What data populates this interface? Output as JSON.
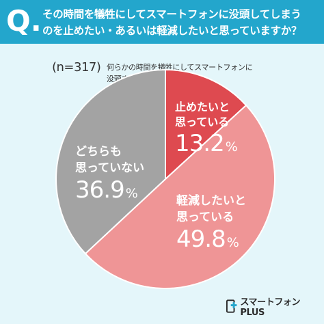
{
  "question": {
    "mark": "Q.",
    "line1": "その時間を犠牲にしてスマートフォンに没頭してしまう",
    "line2": "のを止めたい・あるいは軽減したいと思っていますか？"
  },
  "sample": "(n=317)",
  "subtitle": {
    "line1": "何らかの時間を犠牲にしてスマートフォンに",
    "line2": "没頭することがある方"
  },
  "colors": {
    "header": "#23a6cc",
    "background": "#e4f6fa",
    "stop": "#de4a50",
    "reduce": "#ef9596",
    "neither": "#a3a3a3"
  },
  "chart_data": {
    "type": "pie",
    "slices": [
      {
        "key": "stop",
        "label_line1": "止めたいと",
        "label_line2": "思っている",
        "value": 13.2,
        "num": "13.2",
        "unit": "%",
        "color": "#de4a50"
      },
      {
        "key": "reduce",
        "label_line1": "軽減したいと",
        "label_line2": "思っている",
        "value": 49.8,
        "num": "49.8",
        "unit": "%",
        "color": "#ef9596"
      },
      {
        "key": "neither",
        "label_line1": "どちらも",
        "label_line2": "思っていない",
        "value": 36.9,
        "num": "36.9",
        "unit": "%",
        "color": "#a3a3a3"
      }
    ]
  },
  "logo": {
    "text": "スマートフォン PLUS",
    "icon": "smartphone-plus-logo-icon"
  }
}
